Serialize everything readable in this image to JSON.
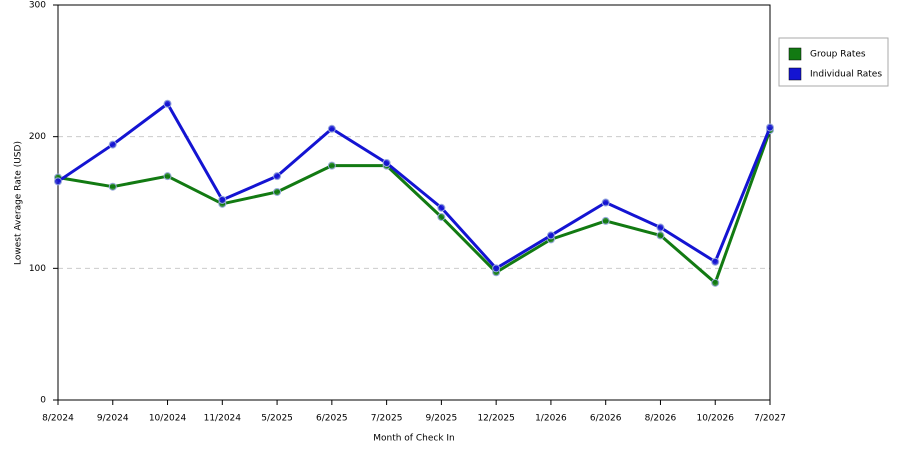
{
  "chart_data": {
    "type": "line",
    "x_label": "Month of Check In",
    "y_label": "Lowest Average Rate (USD)",
    "categories": [
      "8/2024",
      "9/2024",
      "10/2024",
      "11/2024",
      "5/2025",
      "6/2025",
      "7/2025",
      "9/2025",
      "12/2025",
      "1/2026",
      "6/2026",
      "8/2026",
      "10/2026",
      "7/2027"
    ],
    "series": [
      {
        "name": "Group Rates",
        "color": "#127a12",
        "values": [
          169,
          162,
          170,
          149,
          158,
          178,
          178,
          139,
          97,
          122,
          136,
          125,
          89,
          205
        ]
      },
      {
        "name": "Individual Rates",
        "color": "#1414d2",
        "values": [
          166,
          194,
          225,
          152,
          170,
          206,
          180,
          146,
          100,
          125,
          150,
          131,
          105,
          207
        ]
      }
    ],
    "ylim": [
      0,
      300
    ],
    "yticks": [
      0,
      100,
      200,
      300
    ],
    "grid": true,
    "legend": "right"
  }
}
